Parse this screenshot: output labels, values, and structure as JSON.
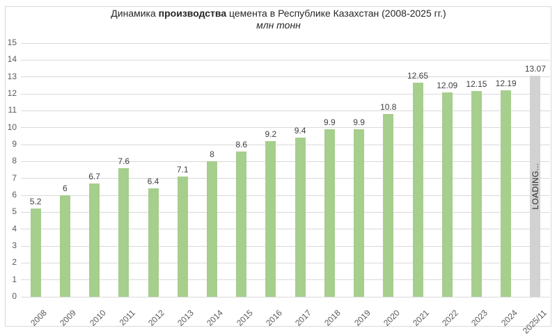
{
  "header": {
    "title_prefix": "Динамика ",
    "title_bold": "производства",
    "title_suffix": " цемента в Республике Казахстан (2008-2025 гг.)",
    "subtitle": "млн тонн"
  },
  "chart_data": {
    "type": "bar",
    "title": "Динамика производства цемента в Республике Казахстан (2008-2025 гг.)",
    "subtitle": "млн тонн",
    "categories": [
      "2008",
      "2009",
      "2010",
      "2011",
      "2012",
      "2013",
      "2014",
      "2015",
      "2016",
      "2017",
      "2018",
      "2019",
      "2020",
      "2021",
      "2022",
      "2023",
      "2024",
      "2025/11"
    ],
    "values": [
      5.2,
      6,
      6.7,
      7.6,
      6.4,
      7.1,
      8,
      8.6,
      9.2,
      9.4,
      9.9,
      9.9,
      10.8,
      12.65,
      12.09,
      12.15,
      12.19,
      13.07
    ],
    "value_labels": [
      "5.2",
      "6",
      "6.7",
      "7.6",
      "6.4",
      "7.1",
      "8",
      "8.6",
      "9.2",
      "9.4",
      "9.9",
      "9.9",
      "10.8",
      "12.65",
      "12.09",
      "12.15",
      "12.19",
      "13.07"
    ],
    "ylim": [
      0,
      15
    ],
    "yticks": [
      0,
      1,
      2,
      3,
      4,
      5,
      6,
      7,
      8,
      9,
      10,
      11,
      12,
      13,
      14,
      15
    ],
    "grid": true,
    "legend": "none",
    "loading_bar": {
      "index": 17,
      "category": "2025/11",
      "value": 13.07,
      "label": "LOADING..."
    }
  },
  "colors": {
    "bar": "#a6ce8c",
    "loading_bar": "#d2d2d2",
    "gridline": "#d9d9d9",
    "frame": "#d9d9d9",
    "tick_label": "#595959",
    "value_label": "#3f3f3f",
    "title": "#262626"
  }
}
